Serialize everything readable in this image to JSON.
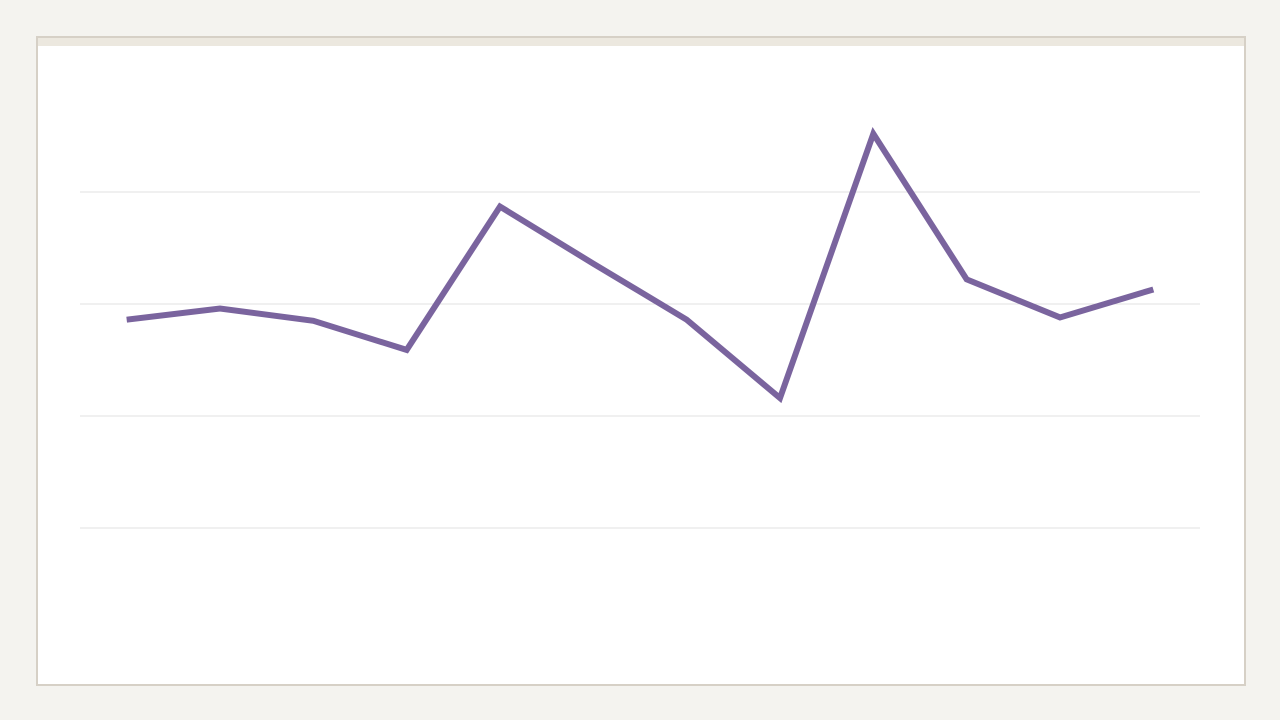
{
  "chart_data": {
    "type": "line",
    "categories": [
      null,
      null,
      null,
      null,
      null,
      null,
      null,
      null,
      null,
      null,
      null,
      null
    ],
    "series": [
      {
        "color": "#7a649e",
        "values": [
          2.86,
          2.96,
          2.85,
          2.59,
          3.87,
          3.36,
          2.86,
          2.16,
          4.52,
          3.22,
          2.88,
          3.13
        ]
      }
    ],
    "ylim": [
      0,
      5
    ],
    "yticks": [
      1,
      2,
      3,
      4
    ],
    "grid": true
  }
}
